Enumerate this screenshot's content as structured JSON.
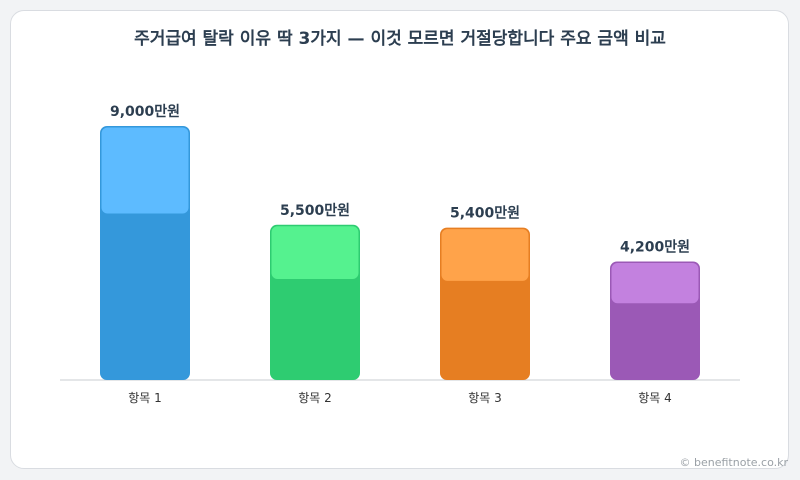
{
  "title": "주거급여 탈락 이유 딱 3가지 — 이것 모르면 거절당합니다 주요 금액 비교",
  "watermark": "© benefitnote.co.kr",
  "unit": "만원",
  "colors": {
    "bar_bottom": [
      "#3498db",
      "#2ecc71",
      "#e67e22",
      "#9b59b6"
    ],
    "bar_top": [
      "#5dbbff",
      "#55f28f",
      "#ffa34a",
      "#c381df"
    ],
    "label": "#2c3e50",
    "axis": "#c8ccd2"
  },
  "chart_data": {
    "type": "bar",
    "title": "주거급여 탈락 이유 딱 3가지 — 이것 모르면 거절당합니다 주요 금액 비교",
    "categories": [
      "항목 1",
      "항목 2",
      "항목 3",
      "항목 4"
    ],
    "values": [
      9000,
      5500,
      5400,
      4200
    ],
    "value_labels": [
      "9,000만원",
      "5,500만원",
      "5,400만원",
      "4,200만원"
    ],
    "xlabel": "",
    "ylabel": "",
    "ylim": [
      0,
      9000
    ],
    "grid": false,
    "legend": "none"
  }
}
